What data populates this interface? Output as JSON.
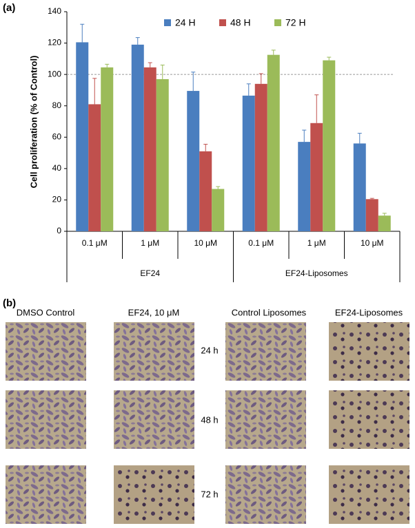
{
  "panel_labels": [
    "(a)",
    "(b)"
  ],
  "chart_data": {
    "type": "bar",
    "y_label": "Cell proliferation (% of Control)",
    "categories": [
      "0.1 μM",
      "1 μM",
      "10 μM",
      "0.1 μM",
      "1 μM",
      "10 μM"
    ],
    "groups": [
      "EF24",
      "EF24-Liposomes"
    ],
    "series": [
      {
        "name": "24 H",
        "color": "#4a7ebf",
        "values": [
          120.5,
          119,
          89.5,
          86.5,
          57,
          56
        ],
        "errors": [
          11.5,
          4.5,
          12,
          7.5,
          7.5,
          6.5
        ]
      },
      {
        "name": "48 H",
        "color": "#c0504d",
        "values": [
          81,
          104.5,
          51,
          94,
          69,
          20.5
        ],
        "errors": [
          16.5,
          3,
          4.5,
          6.5,
          18,
          0.5
        ]
      },
      {
        "name": "72 H",
        "color": "#9bbb59",
        "values": [
          104.5,
          97,
          27,
          112.5,
          109,
          10
        ],
        "errors": [
          2,
          9,
          1.5,
          3,
          2,
          1.5
        ]
      }
    ],
    "ylim": [
      0,
      140
    ],
    "yticks": [
      0,
      20,
      40,
      60,
      80,
      100,
      120,
      140
    ],
    "reference_line": 100,
    "legend": "top"
  },
  "panel_b": {
    "columns": [
      "DMSO Control",
      "EF24, 10 μM",
      "Control Liposomes",
      "EF24-Liposomes"
    ],
    "rows": [
      "24 h",
      "48 h",
      "72 h"
    ]
  }
}
